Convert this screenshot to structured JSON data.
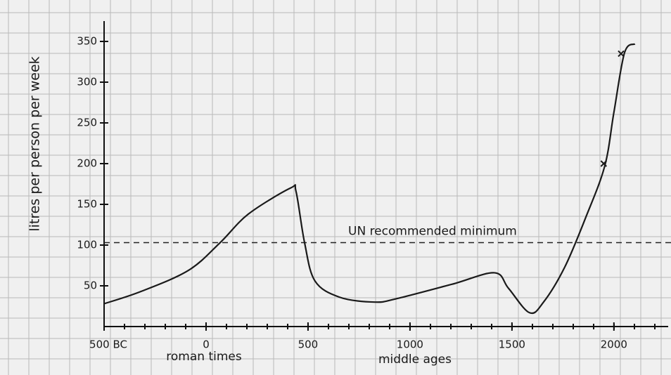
{
  "chart_data": {
    "type": "line",
    "y_label": "litres per person per week",
    "x": [
      -500,
      -320,
      -86,
      69,
      207,
      414,
      441,
      483,
      534,
      655,
      828,
      931,
      1207,
      1414,
      1483,
      1586,
      1655,
      1759,
      1862,
      1955,
      2000,
      2052,
      2103
    ],
    "values": [
      28,
      43,
      69,
      103,
      138,
      170,
      166,
      103,
      56,
      36,
      30,
      34,
      52,
      66,
      47,
      17,
      30,
      73,
      134,
      197,
      263,
      336,
      347
    ],
    "color": "#1a1a1a",
    "points": {
      "x": [
        1950,
        2035
      ],
      "y": [
        200,
        335
      ]
    },
    "reference_line": {
      "value": 103,
      "label": "UN recommended minimum"
    },
    "annotations": [
      "roman times",
      "middle ages"
    ],
    "xlim": [
      -500,
      2280
    ],
    "ylim": [
      0,
      375
    ],
    "xticks": [
      {
        "value": -500,
        "label": "500 BC"
      },
      0,
      500,
      1000,
      1500,
      2000
    ],
    "yticks": [
      50,
      100,
      150,
      200,
      250,
      300,
      350
    ]
  }
}
